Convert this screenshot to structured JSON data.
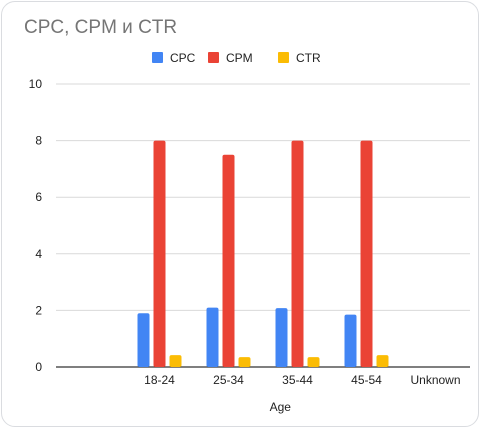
{
  "chart_data": {
    "type": "bar",
    "title": "CPC, CPM и CTR",
    "xlabel": "Age",
    "ylabel": "",
    "ylim": [
      0,
      10
    ],
    "yticks": [
      0,
      2,
      4,
      6,
      8,
      10
    ],
    "grid": true,
    "legend_position": "top",
    "categories": [
      "18-24",
      "25-34",
      "35-44",
      "45-54",
      "Unknown"
    ],
    "series": [
      {
        "name": "CPC",
        "color": "#4285f4",
        "values": [
          1.9,
          2.1,
          2.08,
          1.85,
          0
        ]
      },
      {
        "name": "CPM",
        "color": "#ea4335",
        "values": [
          8,
          7.5,
          8,
          8,
          0
        ]
      },
      {
        "name": "CTR",
        "color": "#fbbc04",
        "values": [
          0.42,
          0.35,
          0.35,
          0.42,
          0
        ]
      }
    ]
  }
}
